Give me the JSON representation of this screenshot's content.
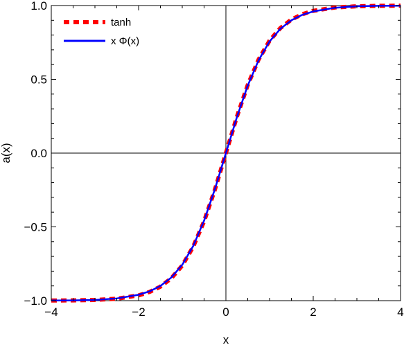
{
  "chart_data": {
    "type": "line",
    "title": "",
    "xlabel": "x",
    "ylabel": "a(x)",
    "xlim": [
      -4,
      4
    ],
    "ylim": [
      -1,
      1
    ],
    "xticks": [
      -4,
      -2,
      0,
      2,
      4
    ],
    "xtick_labels": [
      "−4",
      "−2",
      "0",
      "2",
      "4"
    ],
    "yticks": [
      -1,
      -0.5,
      0,
      0.5,
      1
    ],
    "ytick_labels": [
      "−1.0",
      "−0.5",
      "0.0",
      "0.5",
      "1.0"
    ],
    "grid": false,
    "reference_lines": {
      "x": 0,
      "y": 0
    },
    "legend_position": "top-left",
    "series": [
      {
        "name": "tanh",
        "color": "#ff0000",
        "style": "dashed",
        "x": [
          -4,
          -3.5,
          -3,
          -2.5,
          -2,
          -1.75,
          -1.5,
          -1.25,
          -1,
          -0.75,
          -0.5,
          -0.25,
          0,
          0.25,
          0.5,
          0.75,
          1,
          1.25,
          1.5,
          1.75,
          2,
          2.5,
          3,
          3.5,
          4
        ],
        "y": [
          -0.999,
          -0.998,
          -0.995,
          -0.987,
          -0.964,
          -0.941,
          -0.905,
          -0.848,
          -0.762,
          -0.635,
          -0.462,
          -0.245,
          0,
          0.245,
          0.462,
          0.635,
          0.762,
          0.848,
          0.905,
          0.941,
          0.964,
          0.987,
          0.995,
          0.998,
          0.999
        ]
      },
      {
        "name": "x Φ(x)",
        "color": "#0000ff",
        "style": "solid",
        "x": [
          -4,
          -3.5,
          -3,
          -2.5,
          -2,
          -1.75,
          -1.5,
          -1.25,
          -1,
          -0.75,
          -0.5,
          -0.25,
          0,
          0.25,
          0.5,
          0.75,
          1,
          1.25,
          1.5,
          1.75,
          2,
          2.5,
          3,
          3.5,
          4
        ],
        "y": [
          -0.999,
          -0.998,
          -0.995,
          -0.985,
          -0.96,
          -0.937,
          -0.9,
          -0.843,
          -0.757,
          -0.63,
          -0.458,
          -0.242,
          0,
          0.242,
          0.458,
          0.63,
          0.757,
          0.843,
          0.9,
          0.937,
          0.96,
          0.985,
          0.995,
          0.998,
          0.999
        ]
      }
    ]
  }
}
